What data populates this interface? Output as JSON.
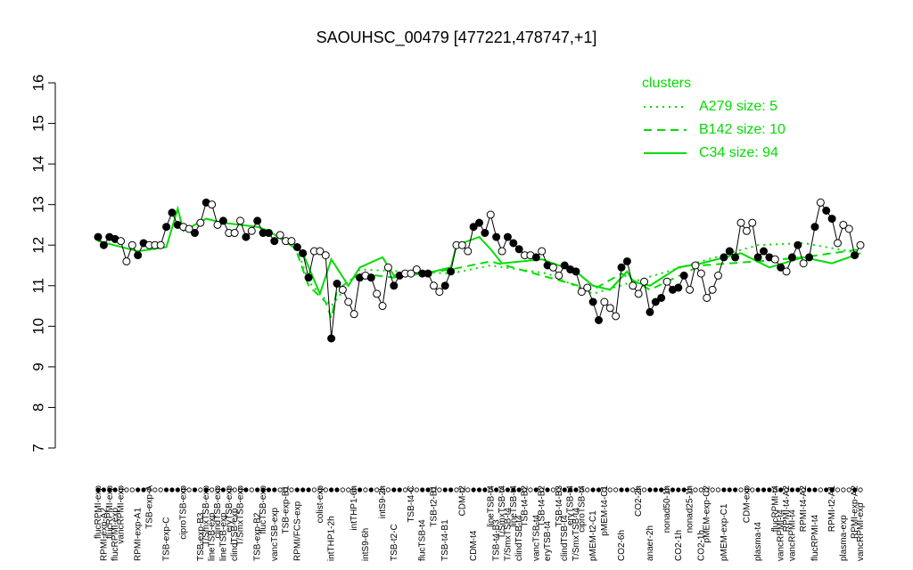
{
  "chart_data": {
    "type": "line",
    "title": "SAOUHSC_00479 [477221,478747,+1]",
    "ylim": [
      7,
      16
    ],
    "yticks": [
      7,
      8,
      9,
      10,
      11,
      12,
      13,
      14,
      15,
      16
    ],
    "categories": [
      "flucRPMI-exp",
      "RPMI-exp-A2",
      "flucRPMI-exp",
      "flucRPMI-exp",
      "vancRPMI-exp",
      null,
      null,
      "RPMI-exp-A1",
      null,
      "TSB-exp-A",
      null,
      null,
      "TSB-exp-C",
      null,
      null,
      "ciproTSB-exp",
      null,
      null,
      "TSB-exp-B3",
      "T/SmxTSB-exp",
      "lineTSB-exp",
      "clindTSB-exp",
      "lineTSB-exp",
      "eryTSB-exp",
      "clindTSB-exp",
      "T/SmxTSB-exp",
      null,
      null,
      "TSB-exp-B2",
      "flucTSB-exp",
      null,
      "vancTSB-exp",
      null,
      "TSB-exp-B1",
      null,
      "RPMI/FCS-exp",
      null,
      null,
      null,
      "colist-exp",
      null,
      "intTHP1-2h",
      null,
      null,
      null,
      "intTHP1-6h",
      null,
      "intS9-6h",
      null,
      null,
      "intS9-2h",
      null,
      "TSB-t2-C",
      null,
      null,
      "TSB-t4-C",
      null,
      "flucTSB-t4",
      null,
      "TSB-t2-B1",
      null,
      "TSB-t4-B1",
      null,
      null,
      "CDM-t2",
      null,
      "CDM-t4",
      null,
      null,
      "lineTSB-t4",
      "TSB-t4-B3",
      "T/SmxTSB-t4",
      "T/SmxTSB-t4",
      "lineTSB-t4",
      "clindTSB-t4",
      "TSB-t4-B2",
      null,
      "vancTSB-t4",
      "TSB-t4-B2",
      "eryTSB-t4",
      null,
      "TSB-t4-B3",
      "clindTSB-t4",
      "eryTSB-t4",
      "T/SmxTSB-t4",
      "ciproTSB-t4",
      null,
      "pMEM-t2-C1",
      null,
      "pMEM-t4-C1",
      null,
      null,
      "CO2-6h",
      null,
      null,
      "CO2-2h",
      null,
      "anaer-2h",
      null,
      null,
      "nonad50-1h",
      null,
      "CO2-1h",
      null,
      "nonad25-1h",
      null,
      "CO2-1h",
      "pMEM-exp-C2",
      null,
      null,
      "pMEM-exp-C1",
      null,
      null,
      null,
      "CDM-exp",
      null,
      "plasma-t4",
      null,
      null,
      "flucRPMI-t4",
      "vancRPMI-t4",
      "RPMI-t4-A2",
      "vancRPMI-t4",
      null,
      "RPMI-t4-A2",
      null,
      "flucRPMI-t4",
      null,
      null,
      "RPMI-t2-A1",
      null,
      "plasma-exp",
      null,
      "RPMI-exp-A2",
      "vancRPMI-exp"
    ],
    "values": [
      12.2,
      12.0,
      12.2,
      12.15,
      12.1,
      11.6,
      12.0,
      11.75,
      12.05,
      12.0,
      12.0,
      12.0,
      12.45,
      12.8,
      12.5,
      12.45,
      12.4,
      12.3,
      12.55,
      13.05,
      13.0,
      12.5,
      12.6,
      12.3,
      12.3,
      12.6,
      12.2,
      12.35,
      12.6,
      12.3,
      12.3,
      12.1,
      12.25,
      12.1,
      12.1,
      11.95,
      11.8,
      11.2,
      11.85,
      11.85,
      11.75,
      9.7,
      11.05,
      10.9,
      10.6,
      10.3,
      11.2,
      11.25,
      11.2,
      10.8,
      10.5,
      11.45,
      11.0,
      11.25,
      11.3,
      11.3,
      11.4,
      11.3,
      11.3,
      11.0,
      10.85,
      11.0,
      11.35,
      12.0,
      12.0,
      11.85,
      12.45,
      12.55,
      12.3,
      12.75,
      12.2,
      11.85,
      12.2,
      12.05,
      11.9,
      11.75,
      11.75,
      11.7,
      11.85,
      11.5,
      11.45,
      11.25,
      11.5,
      11.4,
      11.35,
      10.85,
      10.95,
      10.6,
      10.15,
      10.6,
      10.45,
      10.25,
      11.45,
      11.6,
      11.0,
      10.8,
      11.1,
      10.35,
      10.6,
      10.7,
      11.1,
      10.9,
      10.95,
      11.25,
      10.9,
      11.5,
      11.3,
      10.7,
      10.9,
      11.25,
      11.7,
      11.85,
      11.7,
      12.55,
      12.35,
      12.55,
      11.7,
      11.85,
      11.7,
      11.65,
      11.45,
      11.35,
      11.7,
      12.0,
      11.55,
      11.7,
      12.45,
      13.05,
      12.85,
      12.65,
      12.05,
      12.5,
      12.4,
      11.75,
      12.0
    ],
    "filled": [
      1,
      1,
      1,
      1,
      0,
      0,
      0,
      1,
      1,
      0,
      0,
      0,
      1,
      1,
      1,
      0,
      0,
      1,
      0,
      1,
      0,
      0,
      1,
      0,
      0,
      0,
      1,
      0,
      1,
      1,
      1,
      1,
      0,
      0,
      0,
      1,
      1,
      1,
      0,
      0,
      0,
      1,
      1,
      0,
      0,
      0,
      1,
      0,
      1,
      0,
      0,
      0,
      1,
      1,
      0,
      0,
      0,
      1,
      1,
      0,
      0,
      1,
      1,
      0,
      0,
      0,
      1,
      1,
      1,
      0,
      1,
      0,
      1,
      1,
      1,
      0,
      0,
      1,
      0,
      1,
      0,
      0,
      1,
      1,
      1,
      0,
      0,
      1,
      1,
      0,
      0,
      0,
      1,
      1,
      0,
      0,
      0,
      1,
      1,
      1,
      0,
      1,
      1,
      1,
      0,
      0,
      0,
      0,
      0,
      0,
      1,
      1,
      1,
      0,
      0,
      0,
      1,
      1,
      1,
      0,
      1,
      0,
      1,
      1,
      0,
      1,
      1,
      0,
      1,
      1,
      0,
      0,
      0,
      1,
      0
    ],
    "color": "#000000",
    "legend_title": "clusters",
    "legend_position": "top-right",
    "clusters": [
      {
        "name": "A279 size: 5",
        "color": "#00dd00",
        "dash": "dotted",
        "x": [
          35,
          37,
          41,
          46,
          62,
          69,
          79,
          87,
          106,
          116,
          124,
          134
        ],
        "values": [
          11.9,
          11.1,
          10.5,
          11.4,
          11.3,
          11.5,
          11.3,
          10.8,
          11.6,
          12.0,
          12.05,
          11.8
        ]
      },
      {
        "name": "B142 size: 10",
        "color": "#00dd00",
        "dash": "dashed",
        "x": [
          35,
          37,
          40,
          41,
          42,
          46,
          52,
          62,
          69,
          87,
          92,
          97,
          106,
          116,
          124,
          134
        ],
        "values": [
          11.8,
          11.0,
          10.6,
          10.2,
          10.9,
          11.3,
          11.2,
          11.4,
          11.6,
          10.9,
          11.3,
          10.9,
          11.5,
          11.6,
          11.7,
          11.9
        ]
      },
      {
        "name": "C34 size: 94",
        "color": "#00dd00",
        "dash": "solid",
        "x": [
          0,
          7,
          12,
          14,
          15,
          19,
          22,
          28,
          30,
          36,
          39,
          41,
          44,
          46,
          50,
          52,
          59,
          62,
          63,
          67,
          69,
          71,
          78,
          84,
          87,
          90,
          93,
          94,
          97,
          102,
          106,
          113,
          118,
          124,
          129,
          134
        ],
        "values": [
          12.1,
          11.85,
          11.95,
          12.9,
          12.35,
          12.65,
          12.55,
          12.45,
          12.35,
          11.8,
          10.8,
          11.65,
          11.0,
          11.45,
          11.7,
          11.25,
          11.35,
          11.45,
          12.0,
          12.2,
          11.9,
          11.55,
          11.65,
          11.35,
          11.0,
          10.9,
          11.35,
          11.1,
          11.0,
          11.45,
          11.55,
          11.8,
          11.45,
          11.7,
          11.55,
          11.8
        ]
      }
    ]
  }
}
